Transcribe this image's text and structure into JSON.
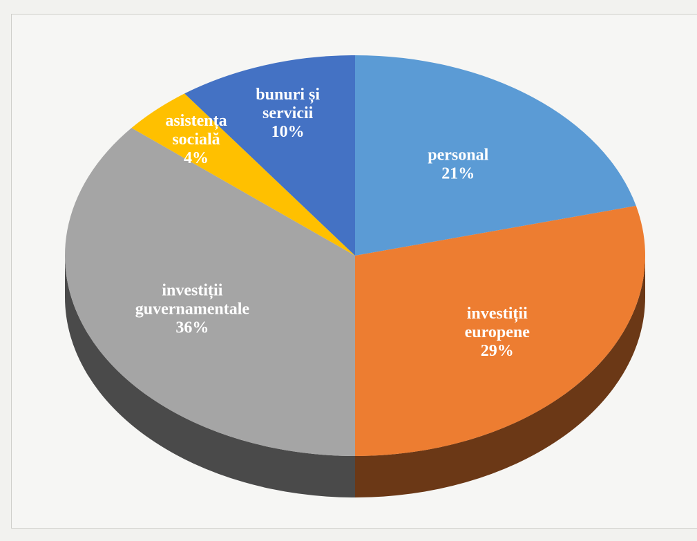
{
  "chart_data": {
    "type": "pie",
    "style": "3d",
    "title": "",
    "categories": [
      "personal",
      "investiții europene",
      "investiții guvernamentale",
      "asistența socială",
      "bunuri și servicii"
    ],
    "values": [
      21,
      29,
      36,
      4,
      10
    ],
    "unit": "%",
    "colors": [
      "#5b9bd5",
      "#ed7d31",
      "#a5a5a5",
      "#ffc000",
      "#4472c4"
    ],
    "labels": [
      {
        "lines": [
          "personal"
        ],
        "value_text": "21%"
      },
      {
        "lines": [
          "investiții",
          "europene"
        ],
        "value_text": "29%"
      },
      {
        "lines": [
          "investiții",
          "guvernamentale"
        ],
        "value_text": "36%"
      },
      {
        "lines": [
          "asistența",
          "socială"
        ],
        "value_text": "4%"
      },
      {
        "lines": [
          "bunuri și",
          "servicii"
        ],
        "value_text": "10%"
      }
    ],
    "legend": "none",
    "data_labels": "inside"
  }
}
